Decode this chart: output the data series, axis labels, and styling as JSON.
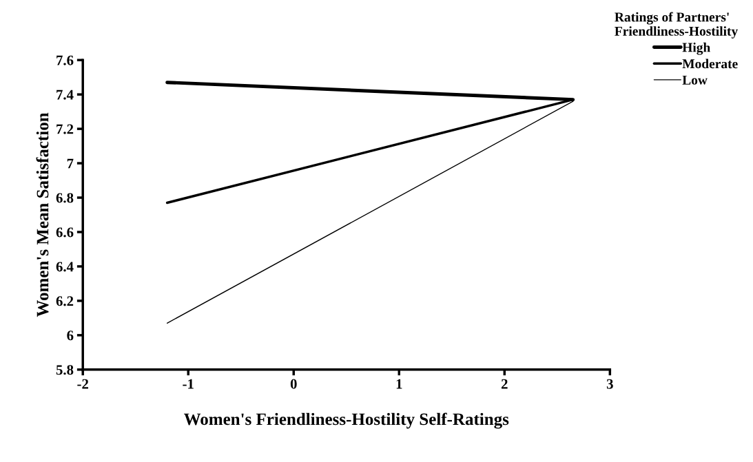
{
  "chart_data": {
    "type": "line",
    "xlabel": "Women's Friendliness-Hostility Self-Ratings",
    "ylabel": "Women's Mean Satisfaction",
    "legend_title": "Ratings of Partners'\nFriendliness-Hostility",
    "legend": "top right",
    "x": [
      -1.2,
      2.65
    ],
    "series": [
      {
        "name": "High",
        "color": "#000000",
        "values": [
          7.47,
          7.37
        ]
      },
      {
        "name": "Moderate",
        "color": "#000000",
        "values": [
          6.77,
          7.37
        ]
      },
      {
        "name": "Low",
        "color": "#000000",
        "values": [
          6.07,
          7.36
        ]
      }
    ],
    "xlim": [
      -2,
      3
    ],
    "xticks": [
      -2,
      -1,
      0,
      1,
      2,
      3
    ],
    "ylim": [
      5.8,
      7.6
    ],
    "yticks": [
      5.8,
      6,
      6.2,
      6.4,
      6.6,
      6.8,
      7,
      7.2,
      7.4,
      7.6
    ],
    "grid": false,
    "marker": "none",
    "line_style": "solid"
  }
}
